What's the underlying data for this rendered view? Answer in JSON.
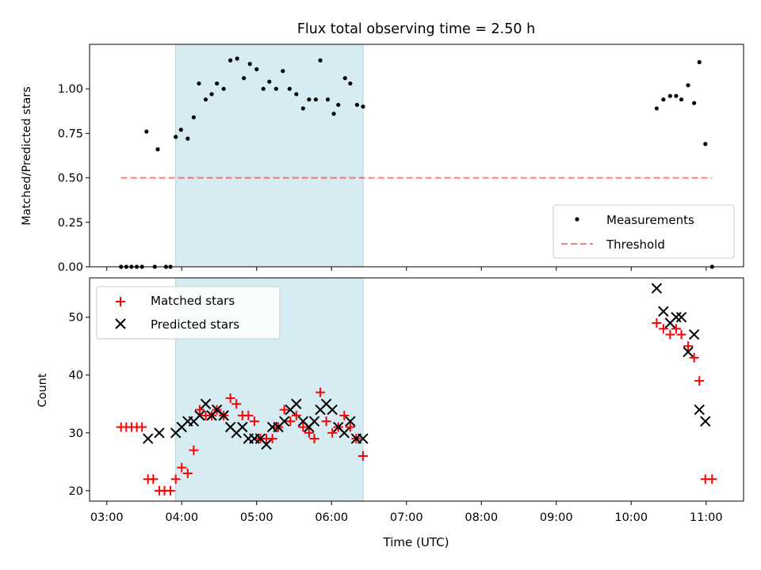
{
  "figure": {
    "title": "Flux total observing time = 2.50 h",
    "xlabel": "Time (UTC)"
  },
  "colors": {
    "observing_band": "#add8e6",
    "measurement": "#000000",
    "threshold": "#ff0000",
    "matched": "#ff0000",
    "predicted": "#000000"
  },
  "chart_data": [
    {
      "type": "scatter",
      "panel": "top",
      "ylabel": "Matched/Predicted stars",
      "x_unit": "hours UTC",
      "xlim": [
        2.77,
        11.5
      ],
      "ylim": [
        0,
        1.25
      ],
      "yticks": [
        0,
        0.25,
        0.5,
        0.75,
        1.0
      ],
      "ytick_labels": [
        "0.00",
        "0.25",
        "0.50",
        "0.75",
        "1.00"
      ],
      "xticks": [
        3,
        4,
        5,
        6,
        7,
        8,
        9,
        10,
        11
      ],
      "xtick_labels": [
        "03:00",
        "04:00",
        "05:00",
        "06:00",
        "07:00",
        "08:00",
        "09:00",
        "10:00",
        "11:00"
      ],
      "grid": false,
      "legend": {
        "position": "lower-right",
        "entries": [
          "Measurements",
          "Threshold"
        ]
      },
      "shaded_span": [
        3.92,
        6.42
      ],
      "series": [
        {
          "name": "Measurements",
          "marker": "dot",
          "x": [
            3.19,
            3.26,
            3.33,
            3.4,
            3.47,
            3.53,
            3.64,
            3.68,
            3.79,
            3.85,
            3.92,
            3.99,
            4.08,
            4.16,
            4.23,
            4.32,
            4.4,
            4.47,
            4.56,
            4.65,
            4.74,
            4.83,
            4.91,
            5.0,
            5.09,
            5.17,
            5.26,
            5.35,
            5.44,
            5.53,
            5.62,
            5.7,
            5.79,
            5.85,
            5.95,
            6.03,
            6.09,
            6.18,
            6.25,
            6.34,
            6.42,
            10.34,
            10.43,
            10.52,
            10.6,
            10.67,
            10.76,
            10.84,
            10.91,
            10.99,
            11.08
          ],
          "y": [
            0,
            0,
            0,
            0,
            0,
            0.76,
            0,
            0.66,
            0,
            0,
            0.73,
            0.77,
            0.72,
            0.84,
            1.03,
            0.94,
            0.97,
            1.03,
            1.0,
            1.16,
            1.17,
            1.06,
            1.14,
            1.11,
            1.0,
            1.04,
            1.0,
            1.1,
            1.0,
            0.97,
            0.89,
            0.94,
            0.94,
            1.16,
            0.94,
            0.86,
            0.91,
            1.06,
            1.03,
            0.91,
            0.9,
            0.89,
            0.94,
            0.96,
            0.96,
            0.94,
            1.02,
            0.92,
            1.15,
            0.69,
            0
          ]
        },
        {
          "name": "Threshold",
          "style": "dashed-line",
          "x": [
            3.19,
            11.08
          ],
          "y": [
            0.5,
            0.5
          ]
        }
      ]
    },
    {
      "type": "scatter",
      "panel": "bottom",
      "ylabel": "Count",
      "x_unit": "hours UTC",
      "xlim": [
        2.77,
        11.5
      ],
      "ylim": [
        18.2,
        56.8
      ],
      "yticks": [
        20,
        30,
        40,
        50
      ],
      "ytick_labels": [
        "20",
        "30",
        "40",
        "50"
      ],
      "xticks": [
        3,
        4,
        5,
        6,
        7,
        8,
        9,
        10,
        11
      ],
      "xtick_labels": [
        "03:00",
        "04:00",
        "05:00",
        "06:00",
        "07:00",
        "08:00",
        "09:00",
        "10:00",
        "11:00"
      ],
      "grid": false,
      "legend": {
        "position": "upper-left",
        "entries": [
          "Matched stars",
          "Predicted stars"
        ]
      },
      "shaded_span": [
        3.92,
        6.42
      ],
      "series": [
        {
          "name": "Matched stars",
          "marker": "plus",
          "x": [
            3.19,
            3.26,
            3.33,
            3.4,
            3.47,
            3.55,
            3.62,
            3.7,
            3.77,
            3.85,
            3.92,
            4.0,
            4.08,
            4.16,
            4.24,
            4.32,
            4.4,
            4.47,
            4.56,
            4.65,
            4.73,
            4.81,
            4.89,
            4.97,
            5.05,
            5.13,
            5.21,
            5.29,
            5.37,
            5.45,
            5.53,
            5.62,
            5.7,
            5.77,
            5.85,
            5.93,
            6.01,
            6.09,
            6.17,
            6.25,
            6.33,
            6.42,
            10.34,
            10.43,
            10.52,
            10.6,
            10.67,
            10.76,
            10.84,
            10.91,
            10.99,
            11.08
          ],
          "y": [
            31,
            31,
            31,
            31,
            31,
            22,
            22,
            20,
            20,
            20,
            22,
            24,
            23,
            27,
            34,
            33,
            33,
            34,
            33,
            36,
            35,
            33,
            33,
            32,
            29,
            29,
            29,
            31,
            34,
            32,
            33,
            31,
            30,
            29,
            37,
            32,
            30,
            31,
            33,
            31,
            29,
            26,
            49,
            48,
            47,
            48,
            47,
            45,
            43,
            39,
            22,
            22
          ]
        },
        {
          "name": "Predicted stars",
          "marker": "x",
          "x": [
            3.55,
            3.7,
            3.92,
            4.0,
            4.08,
            4.16,
            4.24,
            4.32,
            4.4,
            4.47,
            4.56,
            4.65,
            4.73,
            4.81,
            4.89,
            4.97,
            5.05,
            5.13,
            5.21,
            5.29,
            5.37,
            5.45,
            5.53,
            5.62,
            5.7,
            5.77,
            5.85,
            5.93,
            6.01,
            6.09,
            6.17,
            6.25,
            6.33,
            6.42,
            10.34,
            10.43,
            10.52,
            10.6,
            10.67,
            10.76,
            10.84,
            10.91,
            10.99
          ],
          "y": [
            29,
            30,
            30,
            31,
            32,
            32,
            33,
            35,
            33,
            34,
            33,
            31,
            30,
            31,
            29,
            29,
            29,
            28,
            31,
            31,
            32,
            34,
            35,
            32,
            31,
            32,
            34,
            35,
            34,
            31,
            30,
            32,
            29,
            29,
            55,
            51,
            49,
            50,
            50,
            44,
            47,
            34,
            32
          ]
        }
      ]
    }
  ]
}
